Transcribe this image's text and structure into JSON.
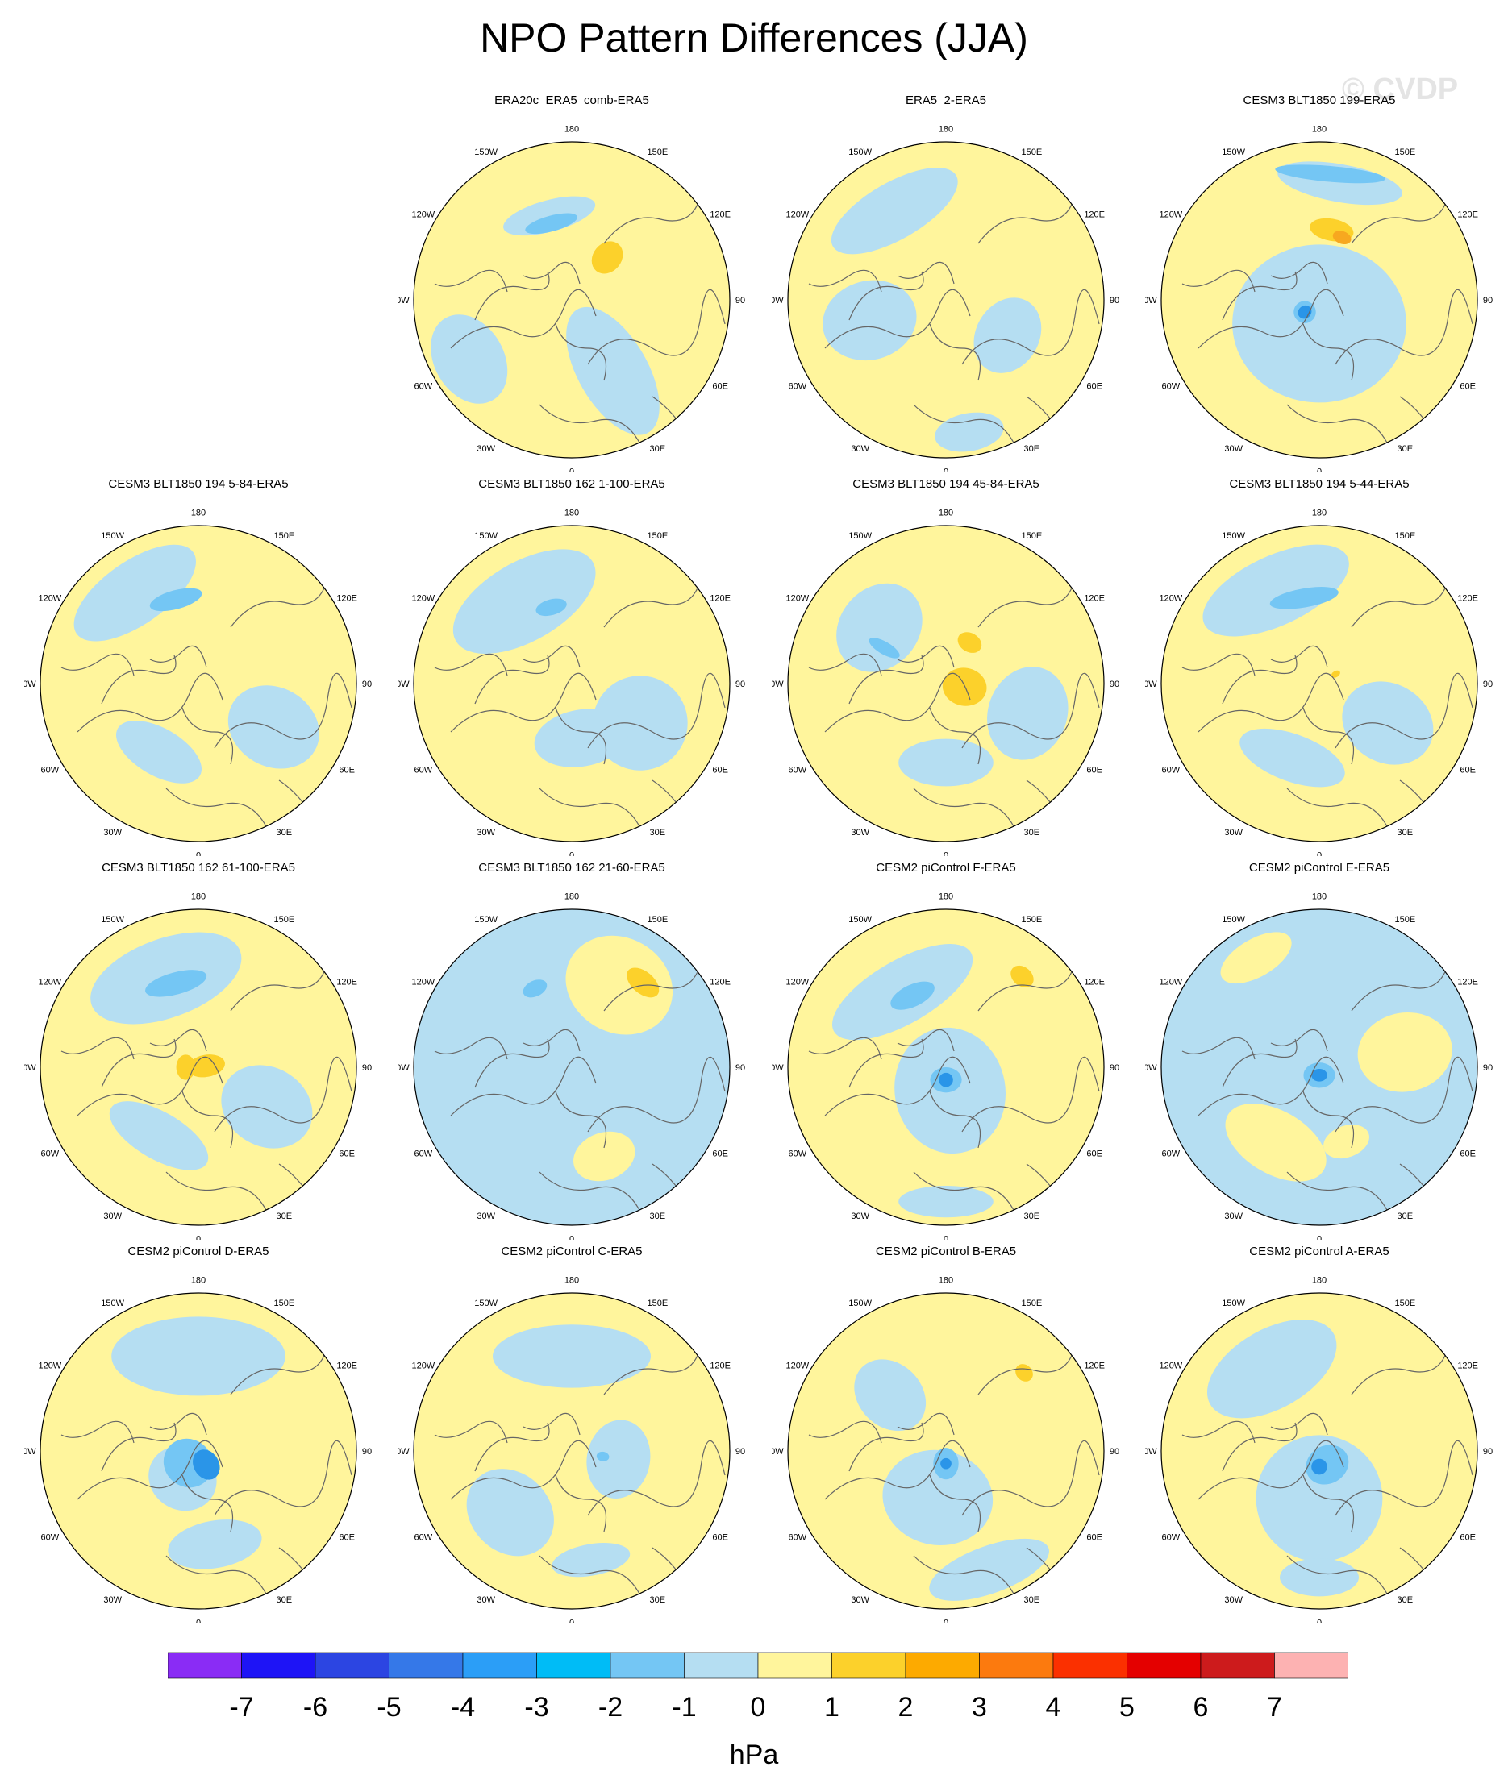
{
  "title": "NPO Pattern Differences (JJA)",
  "watermark": "© CVDP",
  "colors": {
    "light_yellow": "#fff59c",
    "light_blue": "#b5def2",
    "mid_blue": "#74c6f4",
    "strong_blue": "#3fb8f5",
    "blue_core": "#2a95e8",
    "orange_yellow": "#fcd12b",
    "orange": "#f7a81f",
    "coastline": "#666666"
  },
  "map_labels": {
    "longitudes": [
      {
        "text": "180",
        "angle": 180
      },
      {
        "text": "150E",
        "angle": 150
      },
      {
        "text": "120E",
        "angle": 120
      },
      {
        "text": "90E",
        "angle": 90
      },
      {
        "text": "60E",
        "angle": 60
      },
      {
        "text": "30E",
        "angle": 30
      },
      {
        "text": "0",
        "angle": 0
      },
      {
        "text": "30W",
        "angle": -30
      },
      {
        "text": "60W",
        "angle": -60
      },
      {
        "text": "90W",
        "angle": -90
      },
      {
        "text": "120W",
        "angle": -120
      },
      {
        "text": "150W",
        "angle": -150
      }
    ]
  },
  "panels": [
    {
      "title": "ERA20c_ERA5_comb-ERA5",
      "row": 0,
      "col": 1,
      "base": "yellow",
      "blobs": [
        {
          "lon": -165,
          "r": 0.55,
          "sx": 0.3,
          "sy": 0.1,
          "level": -1
        },
        {
          "lon": 30,
          "r": 0.52,
          "sx": 0.22,
          "sy": 0.45,
          "level": -1
        },
        {
          "lon": -60,
          "r": 0.75,
          "sx": 0.3,
          "sy": 0.22,
          "level": -1
        },
        {
          "lon": -165,
          "r": 0.5,
          "sx": 0.17,
          "sy": 0.05,
          "level": -2
        },
        {
          "lon": 140,
          "r": 0.35,
          "sx": 0.09,
          "sy": 0.11,
          "level": 2
        }
      ]
    },
    {
      "title": "ERA5_2-ERA5",
      "row": 0,
      "col": 2,
      "base": "yellow",
      "blobs": [
        {
          "lon": -150,
          "r": 0.65,
          "sx": 0.45,
          "sy": 0.18,
          "level": -1
        },
        {
          "lon": -75,
          "r": 0.5,
          "sx": 0.25,
          "sy": 0.3,
          "level": -1
        },
        {
          "lon": 60,
          "r": 0.45,
          "sx": 0.25,
          "sy": 0.2,
          "level": -1
        },
        {
          "lon": 10,
          "r": 0.85,
          "sx": 0.22,
          "sy": 0.12,
          "level": -1
        }
      ]
    },
    {
      "title": "CESM3 BLT1850 199-ERA5",
      "row": 0,
      "col": 3,
      "base": "yellow",
      "blobs": [
        {
          "lon": 0,
          "r": 0.15,
          "sx": 0.55,
          "sy": 0.5,
          "level": -1
        },
        {
          "lon": 170,
          "r": 0.75,
          "sx": 0.4,
          "sy": 0.12,
          "level": -1
        },
        {
          "lon": 175,
          "r": 0.8,
          "sx": 0.35,
          "sy": 0.05,
          "level": -2
        },
        {
          "lon": 170,
          "r": 0.45,
          "sx": 0.14,
          "sy": 0.07,
          "level": 2
        },
        {
          "lon": 160,
          "r": 0.42,
          "sx": 0.06,
          "sy": 0.04,
          "level": 3
        },
        {
          "lon": -50,
          "r": 0.12,
          "sx": 0.07,
          "sy": 0.07,
          "level": -2
        },
        {
          "lon": -50,
          "r": 0.12,
          "sx": 0.04,
          "sy": 0.045,
          "level": -3
        }
      ]
    },
    {
      "title": "CESM3 BLT1850 194 5-84-ERA5",
      "row": 1,
      "col": 0,
      "base": "yellow",
      "blobs": [
        {
          "lon": -145,
          "r": 0.7,
          "sx": 0.45,
          "sy": 0.2,
          "level": -1
        },
        {
          "lon": 60,
          "r": 0.55,
          "sx": 0.25,
          "sy": 0.3,
          "level": -1
        },
        {
          "lon": -30,
          "r": 0.5,
          "sx": 0.3,
          "sy": 0.15,
          "level": -1
        },
        {
          "lon": -165,
          "r": 0.55,
          "sx": 0.17,
          "sy": 0.06,
          "level": -2
        }
      ]
    },
    {
      "title": "CESM3 BLT1850 162 1-100-ERA5",
      "row": 1,
      "col": 1,
      "base": "yellow",
      "blobs": [
        {
          "lon": -150,
          "r": 0.6,
          "sx": 0.5,
          "sy": 0.25,
          "level": -1
        },
        {
          "lon": 60,
          "r": 0.5,
          "sx": 0.3,
          "sy": 0.3,
          "level": -1
        },
        {
          "lon": 10,
          "r": 0.35,
          "sx": 0.3,
          "sy": 0.18,
          "level": -1
        },
        {
          "lon": -165,
          "r": 0.5,
          "sx": 0.1,
          "sy": 0.05,
          "level": -2
        }
      ]
    },
    {
      "title": "CESM3 BLT1850 194 45-84-ERA5",
      "row": 1,
      "col": 2,
      "base": "yellow",
      "blobs": [
        {
          "lon": -130,
          "r": 0.55,
          "sx": 0.3,
          "sy": 0.25,
          "level": -1
        },
        {
          "lon": 70,
          "r": 0.55,
          "sx": 0.3,
          "sy": 0.25,
          "level": -1
        },
        {
          "lon": 0,
          "r": 0.5,
          "sx": 0.3,
          "sy": 0.15,
          "level": -1
        },
        {
          "lon": -120,
          "r": 0.45,
          "sx": 0.04,
          "sy": 0.11,
          "level": -2
        },
        {
          "lon": 150,
          "r": 0.3,
          "sx": 0.08,
          "sy": 0.06,
          "level": 2
        },
        {
          "lon": 80,
          "r": 0.12,
          "sx": 0.12,
          "sy": 0.14,
          "level": 2
        }
      ]
    },
    {
      "title": "CESM3 BLT1850 194 5-44-ERA5",
      "row": 1,
      "col": 3,
      "base": "yellow",
      "blobs": [
        {
          "lon": -155,
          "r": 0.65,
          "sx": 0.5,
          "sy": 0.22,
          "level": -1
        },
        {
          "lon": 60,
          "r": 0.5,
          "sx": 0.25,
          "sy": 0.3,
          "level": -1
        },
        {
          "lon": -20,
          "r": 0.5,
          "sx": 0.35,
          "sy": 0.15,
          "level": -1
        },
        {
          "lon": -170,
          "r": 0.55,
          "sx": 0.22,
          "sy": 0.06,
          "level": -2
        },
        {
          "lon": 120,
          "r": 0.12,
          "sx": 0.02,
          "sy": 0.03,
          "level": 2
        }
      ]
    },
    {
      "title": "CESM3 BLT1850 162 61-100-ERA5",
      "row": 2,
      "col": 0,
      "base": "yellow",
      "blobs": [
        {
          "lon": -160,
          "r": 0.6,
          "sx": 0.5,
          "sy": 0.25,
          "level": -1
        },
        {
          "lon": 60,
          "r": 0.5,
          "sx": 0.25,
          "sy": 0.3,
          "level": -1
        },
        {
          "lon": -30,
          "r": 0.5,
          "sx": 0.35,
          "sy": 0.15,
          "level": -1
        },
        {
          "lon": -165,
          "r": 0.55,
          "sx": 0.2,
          "sy": 0.07,
          "level": -2
        },
        {
          "lon": 100,
          "r": 0.05,
          "sx": 0.07,
          "sy": 0.12,
          "level": 2
        },
        {
          "lon": -90,
          "r": 0.08,
          "sx": 0.08,
          "sy": 0.06,
          "level": 2
        }
      ]
    },
    {
      "title": "CESM3 BLT1850 162 21-60-ERA5",
      "row": 2,
      "col": 1,
      "base": "blue",
      "blobs": [
        {
          "lon": 150,
          "r": 0.6,
          "sx": 0.35,
          "sy": 0.3,
          "level": 1
        },
        {
          "lon": 20,
          "r": 0.6,
          "sx": 0.2,
          "sy": 0.15,
          "level": 1
        },
        {
          "lon": 140,
          "r": 0.7,
          "sx": 0.12,
          "sy": 0.07,
          "level": 2
        },
        {
          "lon": -155,
          "r": 0.55,
          "sx": 0.08,
          "sy": 0.05,
          "level": -2
        }
      ]
    },
    {
      "title": "CESM2 piControl F-ERA5",
      "row": 2,
      "col": 2,
      "base": "yellow",
      "blobs": [
        {
          "lon": -150,
          "r": 0.55,
          "sx": 0.5,
          "sy": 0.2,
          "level": -1
        },
        {
          "lon": 10,
          "r": 0.15,
          "sx": 0.35,
          "sy": 0.4,
          "level": -1
        },
        {
          "lon": 0,
          "r": 0.85,
          "sx": 0.3,
          "sy": 0.1,
          "level": -1
        },
        {
          "lon": -155,
          "r": 0.5,
          "sx": 0.15,
          "sy": 0.07,
          "level": -2
        },
        {
          "lon": 0,
          "r": 0.08,
          "sx": 0.1,
          "sy": 0.08,
          "level": -2
        },
        {
          "lon": 0,
          "r": 0.08,
          "sx": 0.045,
          "sy": 0.045,
          "level": -3
        },
        {
          "lon": 140,
          "r": 0.75,
          "sx": 0.08,
          "sy": 0.06,
          "level": 2
        }
      ]
    },
    {
      "title": "CESM2 piControl E-ERA5",
      "row": 2,
      "col": 3,
      "base": "blue",
      "blobs": [
        {
          "lon": -30,
          "r": 0.55,
          "sx": 0.35,
          "sy": 0.2,
          "level": 1
        },
        {
          "lon": 100,
          "r": 0.55,
          "sx": 0.25,
          "sy": 0.3,
          "level": 1
        },
        {
          "lon": -150,
          "r": 0.8,
          "sx": 0.25,
          "sy": 0.12,
          "level": 1
        },
        {
          "lon": 20,
          "r": 0.5,
          "sx": 0.15,
          "sy": 0.1,
          "level": 1
        },
        {
          "lon": 0,
          "r": 0.05,
          "sx": 0.1,
          "sy": 0.08,
          "level": -2
        },
        {
          "lon": 0,
          "r": 0.05,
          "sx": 0.05,
          "sy": 0.04,
          "level": -3
        }
      ]
    },
    {
      "title": "CESM2 piControl D-ERA5",
      "row": 3,
      "col": 0,
      "base": "yellow",
      "blobs": [
        {
          "lon": -180,
          "r": 0.6,
          "sx": 0.55,
          "sy": 0.25,
          "level": -1
        },
        {
          "lon": 10,
          "r": 0.6,
          "sx": 0.3,
          "sy": 0.15,
          "level": -1
        },
        {
          "lon": -30,
          "r": 0.2,
          "sx": 0.22,
          "sy": 0.2,
          "level": -1
        },
        {
          "lon": -40,
          "r": 0.1,
          "sx": 0.16,
          "sy": 0.15,
          "level": -2
        },
        {
          "lon": 30,
          "r": 0.1,
          "sx": 0.08,
          "sy": 0.1,
          "level": -3
        }
      ]
    },
    {
      "title": "CESM2 piControl C-ERA5",
      "row": 3,
      "col": 1,
      "base": "yellow",
      "blobs": [
        {
          "lon": -180,
          "r": 0.6,
          "sx": 0.5,
          "sy": 0.2,
          "level": -1
        },
        {
          "lon": -45,
          "r": 0.55,
          "sx": 0.3,
          "sy": 0.25,
          "level": -1
        },
        {
          "lon": 80,
          "r": 0.3,
          "sx": 0.25,
          "sy": 0.2,
          "level": -1
        },
        {
          "lon": 10,
          "r": 0.7,
          "sx": 0.25,
          "sy": 0.1,
          "level": -1
        },
        {
          "lon": 80,
          "r": 0.2,
          "sx": 0.03,
          "sy": 0.04,
          "level": -2
        }
      ]
    },
    {
      "title": "CESM2 piControl B-ERA5",
      "row": 3,
      "col": 2,
      "base": "yellow",
      "blobs": [
        {
          "lon": -135,
          "r": 0.5,
          "sx": 0.2,
          "sy": 0.25,
          "level": -1
        },
        {
          "lon": -10,
          "r": 0.3,
          "sx": 0.35,
          "sy": 0.3,
          "level": -1
        },
        {
          "lon": 20,
          "r": 0.8,
          "sx": 0.4,
          "sy": 0.15,
          "level": -1
        },
        {
          "lon": 0,
          "r": 0.08,
          "sx": 0.08,
          "sy": 0.1,
          "level": -2
        },
        {
          "lon": 0,
          "r": 0.08,
          "sx": 0.035,
          "sy": 0.035,
          "level": -3
        },
        {
          "lon": 135,
          "r": 0.7,
          "sx": 0.06,
          "sy": 0.05,
          "level": 2
        }
      ]
    },
    {
      "title": "CESM2 piControl A-ERA5",
      "row": 3,
      "col": 3,
      "base": "yellow",
      "blobs": [
        {
          "lon": -150,
          "r": 0.6,
          "sx": 0.45,
          "sy": 0.25,
          "level": -1
        },
        {
          "lon": 0,
          "r": 0.3,
          "sx": 0.4,
          "sy": 0.4,
          "level": -1
        },
        {
          "lon": 0,
          "r": 0.8,
          "sx": 0.25,
          "sy": 0.12,
          "level": -1
        },
        {
          "lon": 30,
          "r": 0.1,
          "sx": 0.14,
          "sy": 0.12,
          "level": -2
        },
        {
          "lon": 0,
          "r": 0.1,
          "sx": 0.05,
          "sy": 0.05,
          "level": -3
        }
      ]
    }
  ],
  "colorbar": {
    "unit": "hPa",
    "colors": [
      "#8a2cf5",
      "#1e14f6",
      "#2c45e2",
      "#3578e8",
      "#2b9ef7",
      "#00bcf6",
      "#74c6f4",
      "#b5def2",
      "#fff59c",
      "#fcd12b",
      "#fdaa00",
      "#fc7a0e",
      "#fb3000",
      "#e40000",
      "#cd1b1c",
      "#fdb2b2"
    ],
    "tick_labels": [
      "-7",
      "-6",
      "-5",
      "-4",
      "-3",
      "-2",
      "-1",
      "0",
      "1",
      "2",
      "3",
      "4",
      "5",
      "6",
      "7"
    ]
  }
}
